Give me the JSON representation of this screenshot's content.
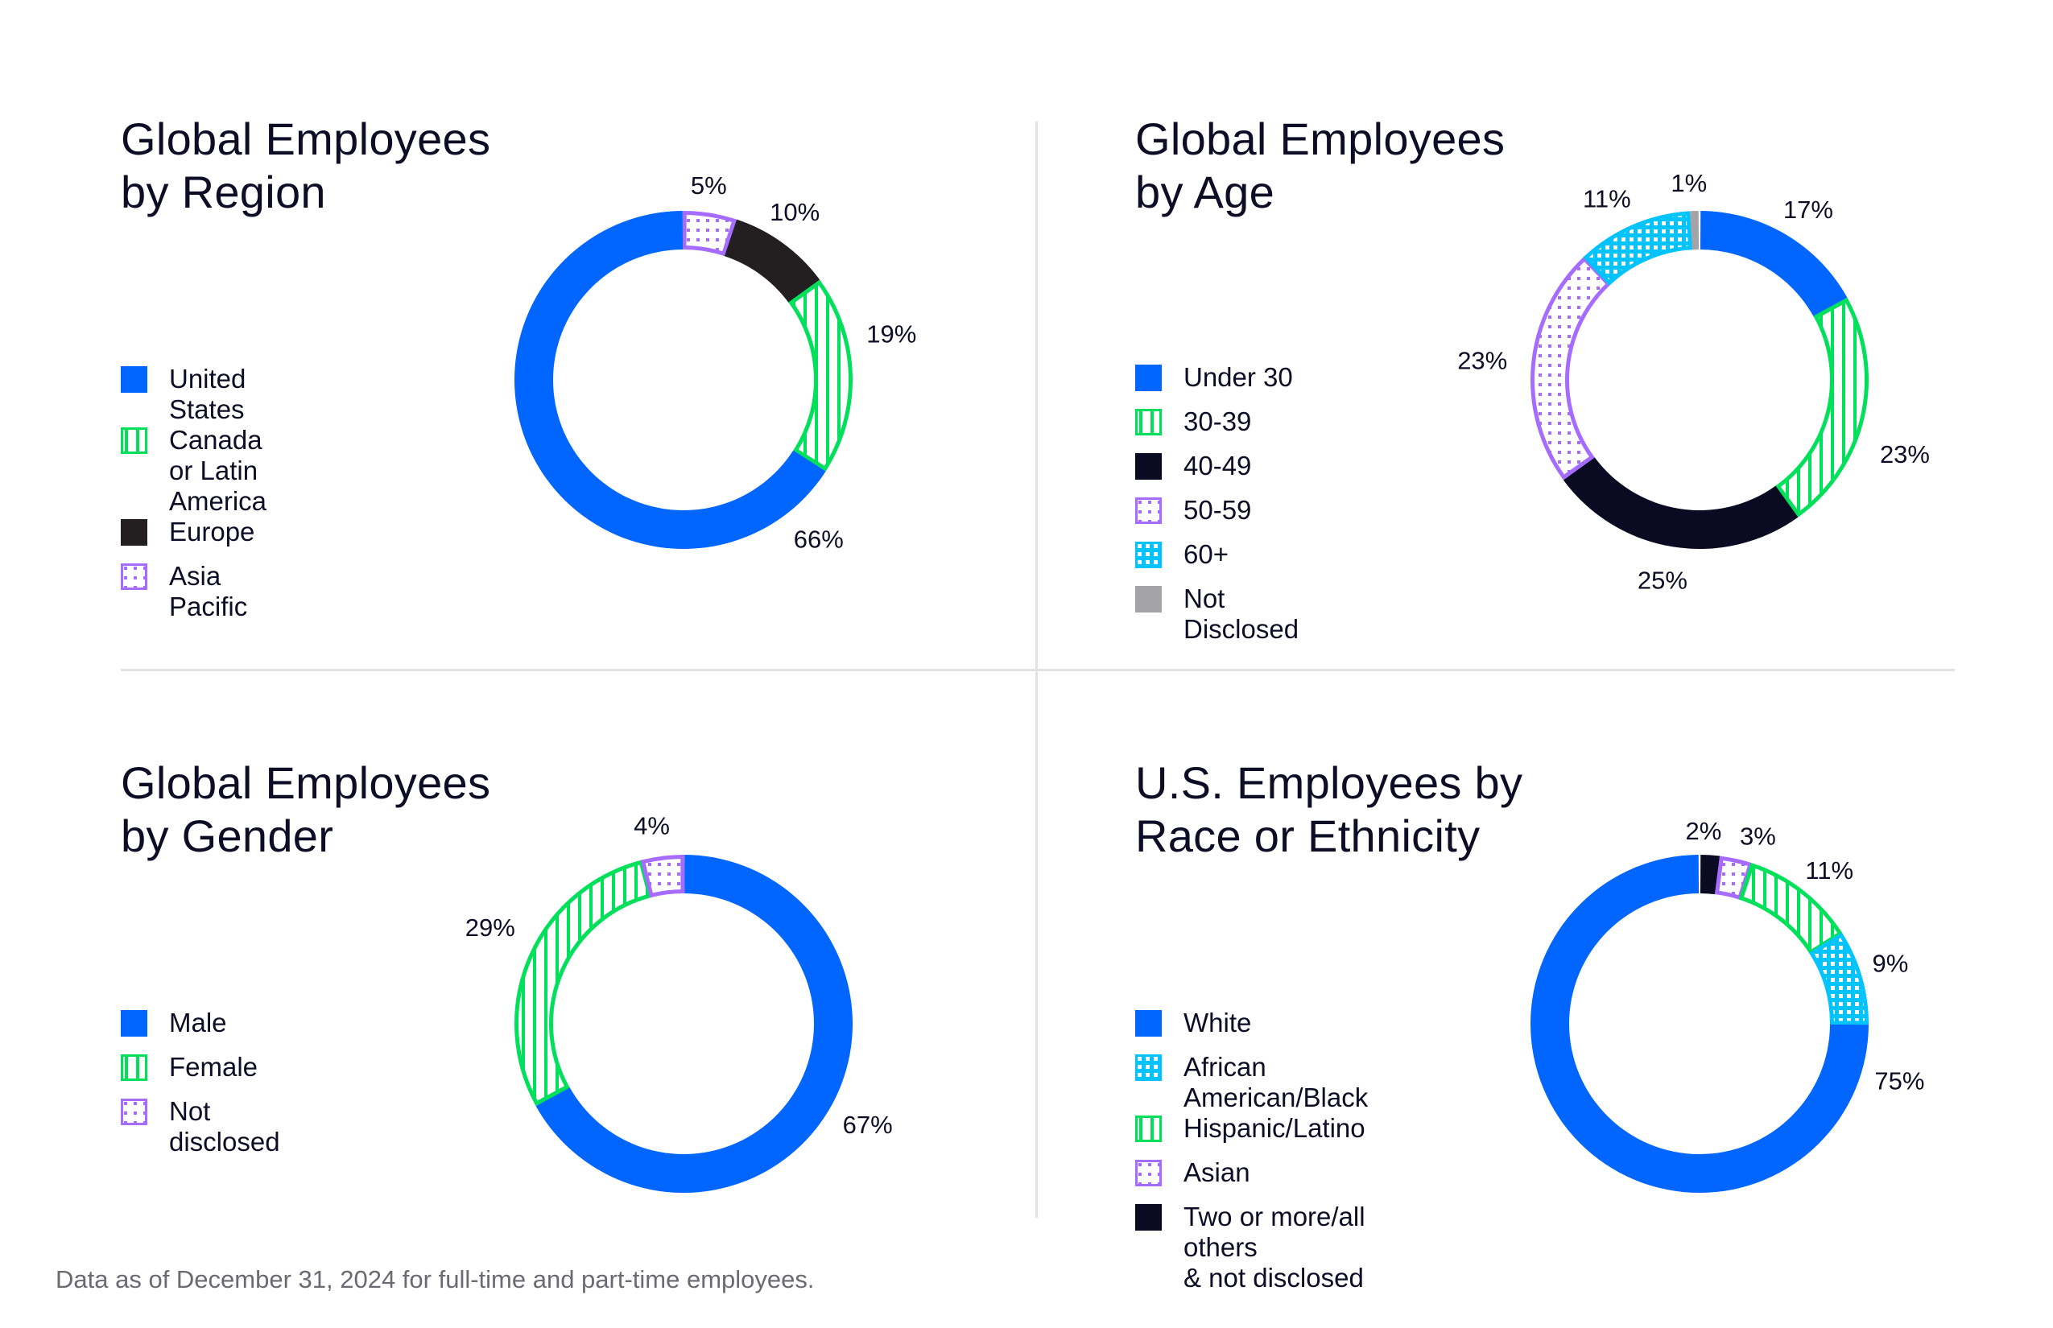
{
  "colors": {
    "blue": "#0066ff",
    "green": "#00e05a",
    "black": "#231f20",
    "navy": "#0a0a23",
    "purple": "#a66cff",
    "cyan": "#00c3ff",
    "gray": "#a3a3a8"
  },
  "chart_data": [
    {
      "type": "pie",
      "title": [
        "Global Employees",
        "by Region"
      ],
      "legend": "left",
      "slices": [
        {
          "label": "Asia Pacific",
          "value": 5,
          "value_label": "5%",
          "color": "purple",
          "fill": "dots"
        },
        {
          "label": "Europe",
          "value": 10,
          "value_label": "10%",
          "color": "black",
          "fill": "solid"
        },
        {
          "label": "Canada or Latin America",
          "value": 19,
          "value_label": "19%",
          "color": "green",
          "fill": "stripes"
        },
        {
          "label": "United States",
          "value": 66,
          "value_label": "66%",
          "color": "blue",
          "fill": "solid"
        }
      ],
      "legend_order": [
        "United States",
        "Canada or Latin America",
        "Europe",
        "Asia Pacific"
      ]
    },
    {
      "type": "pie",
      "title": [
        "Global Employees",
        "by Age"
      ],
      "legend": "left",
      "slices": [
        {
          "label": "Under 30",
          "value": 17,
          "value_label": "17%",
          "color": "blue",
          "fill": "solid"
        },
        {
          "label": "30-39",
          "value": 23,
          "value_label": "23%",
          "color": "green",
          "fill": "stripes"
        },
        {
          "label": "40-49",
          "value": 25,
          "value_label": "25%",
          "color": "navy",
          "fill": "solid"
        },
        {
          "label": "50-59",
          "value": 23,
          "value_label": "23%",
          "color": "purple",
          "fill": "dots"
        },
        {
          "label": "60+",
          "value": 11,
          "value_label": "11%",
          "color": "cyan",
          "fill": "grid"
        },
        {
          "label": "Not Disclosed",
          "value": 1,
          "value_label": "1%",
          "color": "gray",
          "fill": "solid"
        }
      ],
      "legend_order": [
        "Under 30",
        "30-39",
        "40-49",
        "50-59",
        "60+",
        "Not Disclosed"
      ]
    },
    {
      "type": "pie",
      "title": [
        "Global Employees",
        "by Gender"
      ],
      "legend": "left",
      "slices": [
        {
          "label": "Male",
          "value": 67,
          "value_label": "67%",
          "color": "blue",
          "fill": "solid"
        },
        {
          "label": "Female",
          "value": 29,
          "value_label": "29%",
          "color": "green",
          "fill": "stripes"
        },
        {
          "label": "Not disclosed",
          "value": 4,
          "value_label": "4%",
          "color": "purple",
          "fill": "dots"
        }
      ],
      "legend_order": [
        "Male",
        "Female",
        "Not disclosed"
      ]
    },
    {
      "type": "pie",
      "title": [
        "U.S. Employees by",
        "Race or Ethnicity"
      ],
      "legend": "left",
      "slices": [
        {
          "label": "Two or more/all others\n& not disclosed",
          "value": 2,
          "value_label": "2%",
          "color": "navy",
          "fill": "solid"
        },
        {
          "label": "Asian",
          "value": 3,
          "value_label": "3%",
          "color": "purple",
          "fill": "dots"
        },
        {
          "label": "Hispanic/Latino",
          "value": 11,
          "value_label": "11%",
          "color": "green",
          "fill": "stripes"
        },
        {
          "label": "African American/Black",
          "value": 9,
          "value_label": "9%",
          "color": "cyan",
          "fill": "grid"
        },
        {
          "label": "White",
          "value": 75,
          "value_label": "75%",
          "color": "blue",
          "fill": "solid"
        }
      ],
      "legend_order": [
        "White",
        "African American/Black",
        "Hispanic/Latino",
        "Asian",
        "Two or more/all others\n& not disclosed"
      ]
    }
  ],
  "footnote": "Data as of December 31, 2024 for full-time and part-time employees."
}
